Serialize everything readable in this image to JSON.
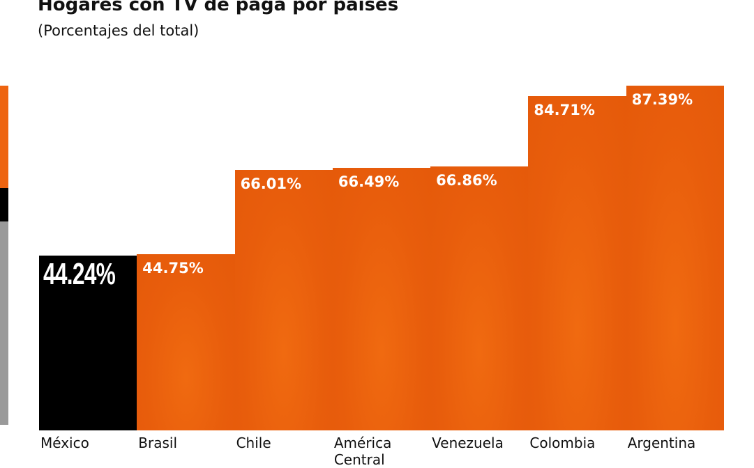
{
  "chart_data": {
    "type": "bar",
    "title": "Hogares con TV de paga por países",
    "subtitle": "(Porcentajes del total)",
    "categories": [
      "México",
      "Brasil",
      "Chile",
      "América Central",
      "Venezuela",
      "Colombia",
      "Argentina"
    ],
    "values": [
      44.24,
      44.75,
      66.01,
      66.49,
      66.86,
      84.71,
      87.39
    ],
    "value_labels": [
      "44.24%",
      "44.75%",
      "66.01%",
      "66.49%",
      "66.86%",
      "84.71%",
      "87.39%"
    ],
    "colors": [
      "#000000",
      "#e85d0c",
      "#e85d0c",
      "#e85d0c",
      "#e85d0c",
      "#e85d0c",
      "#e85d0c"
    ],
    "ylim": [
      0,
      100
    ]
  }
}
